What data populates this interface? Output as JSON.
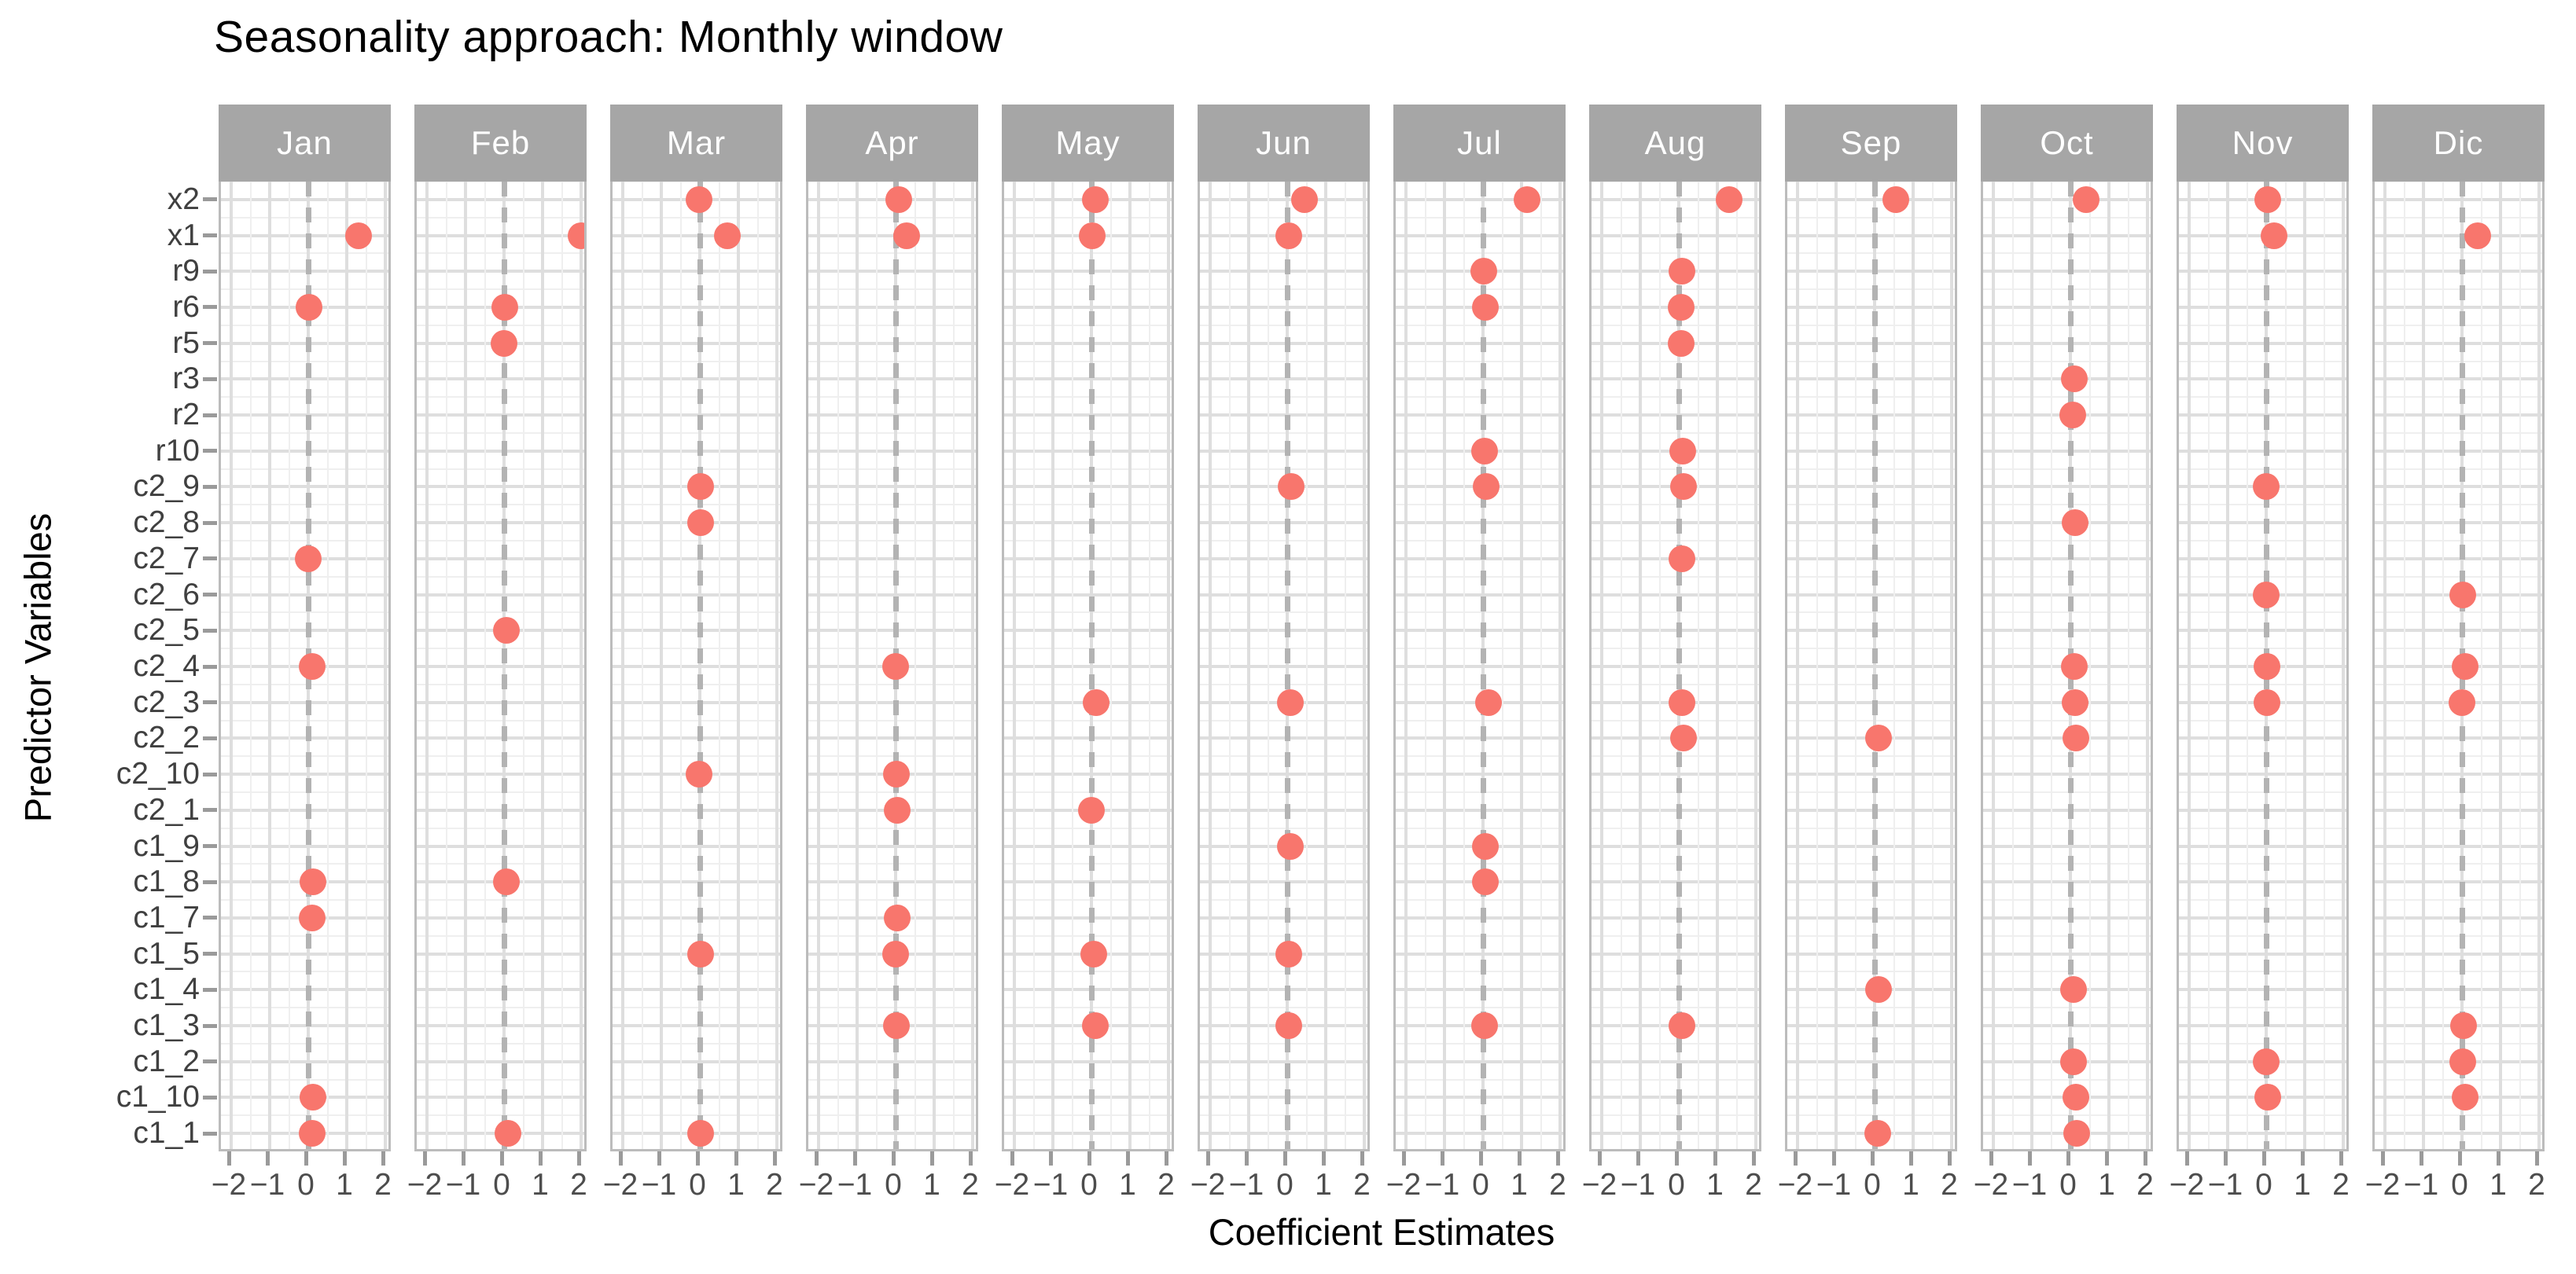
{
  "title": "Seasonality approach: Monthly window",
  "x_axis_label": "Coefficient Estimates",
  "y_axis_label": "Predictor Variables",
  "colors": {
    "point": "#F8766D",
    "strip_bg": "#a6a6a6",
    "strip_text": "#ffffff",
    "grid_major": "#dedede",
    "grid_minor": "#efefef",
    "panel_border": "#bcbcbc",
    "zero_line": "#b3b3b3",
    "tick": "#9a9a9a",
    "tick_label": "#4d4d4d",
    "y_label": "#404040"
  },
  "chart_data": {
    "type": "scatter",
    "facet_variable": "month",
    "facets": [
      "Jan",
      "Feb",
      "Mar",
      "Apr",
      "May",
      "Jun",
      "Jul",
      "Aug",
      "Sep",
      "Oct",
      "Nov",
      "Dic"
    ],
    "y_categories": [
      "x2",
      "x1",
      "r9",
      "r6",
      "r5",
      "r3",
      "r2",
      "r10",
      "c2_9",
      "c2_8",
      "c2_7",
      "c2_6",
      "c2_5",
      "c2_4",
      "c2_3",
      "c2_2",
      "c2_10",
      "c2_1",
      "c1_9",
      "c1_8",
      "c1_7",
      "c1_5",
      "c1_4",
      "c1_3",
      "c1_2",
      "c1_10",
      "c1_1"
    ],
    "x_ticks": [
      -2,
      -1,
      0,
      1,
      2
    ],
    "x_minor_ticks": [
      -1.5,
      -0.5,
      0.5,
      1.5
    ],
    "xlim": [
      -2.3,
      2.25
    ],
    "grid": "major and minor, both axes",
    "zero_reference_line": "dashed vertical at x=0",
    "title": "Seasonality approach: Monthly window",
    "xlabel": "Coefficient Estimates",
    "ylabel": "Predictor Variables",
    "series": [
      {
        "facet": "Jan",
        "points": [
          {
            "y": "x1",
            "x": 1.3
          },
          {
            "y": "r6",
            "x": 0.03
          },
          {
            "y": "c2_7",
            "x": 0.0
          },
          {
            "y": "c2_4",
            "x": 0.1
          },
          {
            "y": "c1_8",
            "x": 0.12
          },
          {
            "y": "c1_7",
            "x": 0.1
          },
          {
            "y": "c1_10",
            "x": 0.12
          },
          {
            "y": "c1_1",
            "x": 0.1
          }
        ]
      },
      {
        "facet": "Feb",
        "points": [
          {
            "y": "x1",
            "x": 2.0
          },
          {
            "y": "r6",
            "x": 0.03
          },
          {
            "y": "r5",
            "x": 0.0
          },
          {
            "y": "c2_5",
            "x": 0.07
          },
          {
            "y": "c1_8",
            "x": 0.07
          },
          {
            "y": "c1_1",
            "x": 0.1
          }
        ]
      },
      {
        "facet": "Mar",
        "points": [
          {
            "y": "x2",
            "x": -0.03
          },
          {
            "y": "x1",
            "x": 0.72
          },
          {
            "y": "c2_9",
            "x": 0.02
          },
          {
            "y": "c2_8",
            "x": 0.03
          },
          {
            "y": "c2_10",
            "x": -0.02
          },
          {
            "y": "c1_5",
            "x": 0.02
          },
          {
            "y": "c1_1",
            "x": 0.02
          }
        ]
      },
      {
        "facet": "Apr",
        "points": [
          {
            "y": "x2",
            "x": 0.08
          },
          {
            "y": "x1",
            "x": 0.28
          },
          {
            "y": "c2_4",
            "x": 0.0
          },
          {
            "y": "c2_10",
            "x": 0.03
          },
          {
            "y": "c2_1",
            "x": 0.05
          },
          {
            "y": "c1_7",
            "x": 0.05
          },
          {
            "y": "c1_5",
            "x": 0.0
          },
          {
            "y": "c1_3",
            "x": 0.02
          }
        ]
      },
      {
        "facet": "May",
        "points": [
          {
            "y": "x2",
            "x": 0.1
          },
          {
            "y": "x1",
            "x": 0.03
          },
          {
            "y": "c2_3",
            "x": 0.12
          },
          {
            "y": "c2_1",
            "x": 0.0
          },
          {
            "y": "c1_5",
            "x": 0.06
          },
          {
            "y": "c1_3",
            "x": 0.1
          }
        ]
      },
      {
        "facet": "Jun",
        "points": [
          {
            "y": "x2",
            "x": 0.45
          },
          {
            "y": "x1",
            "x": 0.05
          },
          {
            "y": "c2_9",
            "x": 0.1
          },
          {
            "y": "c2_3",
            "x": 0.08
          },
          {
            "y": "c1_9",
            "x": 0.08
          },
          {
            "y": "c1_5",
            "x": 0.04
          },
          {
            "y": "c1_3",
            "x": 0.05
          }
        ]
      },
      {
        "facet": "Jul",
        "points": [
          {
            "y": "x2",
            "x": 1.15
          },
          {
            "y": "r9",
            "x": 0.03
          },
          {
            "y": "r6",
            "x": 0.07
          },
          {
            "y": "r10",
            "x": 0.04
          },
          {
            "y": "c2_9",
            "x": 0.09
          },
          {
            "y": "c2_3",
            "x": 0.15
          },
          {
            "y": "c1_9",
            "x": 0.07
          },
          {
            "y": "c1_8",
            "x": 0.06
          },
          {
            "y": "c1_3",
            "x": 0.05
          }
        ]
      },
      {
        "facet": "Aug",
        "points": [
          {
            "y": "x2",
            "x": 1.3
          },
          {
            "y": "r9",
            "x": 0.08
          },
          {
            "y": "r6",
            "x": 0.07
          },
          {
            "y": "r5",
            "x": 0.06
          },
          {
            "y": "r10",
            "x": 0.1
          },
          {
            "y": "c2_9",
            "x": 0.12
          },
          {
            "y": "c2_7",
            "x": 0.09
          },
          {
            "y": "c2_3",
            "x": 0.08
          },
          {
            "y": "c2_2",
            "x": 0.12
          },
          {
            "y": "c1_3",
            "x": 0.08
          }
        ]
      },
      {
        "facet": "Sep",
        "points": [
          {
            "y": "x2",
            "x": 0.55
          },
          {
            "y": "c2_2",
            "x": 0.1
          },
          {
            "y": "c1_4",
            "x": 0.1
          },
          {
            "y": "c1_1",
            "x": 0.09
          }
        ]
      },
      {
        "facet": "Oct",
        "points": [
          {
            "y": "x2",
            "x": 0.4
          },
          {
            "y": "r3",
            "x": 0.1
          },
          {
            "y": "r2",
            "x": 0.07
          },
          {
            "y": "c2_8",
            "x": 0.12
          },
          {
            "y": "c2_4",
            "x": 0.1
          },
          {
            "y": "c2_3",
            "x": 0.13
          },
          {
            "y": "c2_2",
            "x": 0.14
          },
          {
            "y": "c1_4",
            "x": 0.09
          },
          {
            "y": "c1_2",
            "x": 0.09
          },
          {
            "y": "c1_10",
            "x": 0.15
          },
          {
            "y": "c1_1",
            "x": 0.16
          }
        ]
      },
      {
        "facet": "Nov",
        "points": [
          {
            "y": "x2",
            "x": 0.05
          },
          {
            "y": "x1",
            "x": 0.2
          },
          {
            "y": "c2_9",
            "x": 0.0
          },
          {
            "y": "c2_6",
            "x": 0.0
          },
          {
            "y": "c2_4",
            "x": 0.03
          },
          {
            "y": "c2_3",
            "x": 0.03
          },
          {
            "y": "c1_2",
            "x": 0.0
          },
          {
            "y": "c1_10",
            "x": 0.05
          }
        ]
      },
      {
        "facet": "Dic",
        "points": [
          {
            "y": "x1",
            "x": 0.4
          },
          {
            "y": "c2_6",
            "x": 0.02
          },
          {
            "y": "c2_4",
            "x": 0.08
          },
          {
            "y": "c2_3",
            "x": 0.0
          },
          {
            "y": "c1_3",
            "x": 0.05
          },
          {
            "y": "c1_2",
            "x": 0.02
          },
          {
            "y": "c1_10",
            "x": 0.08
          }
        ]
      }
    ]
  }
}
